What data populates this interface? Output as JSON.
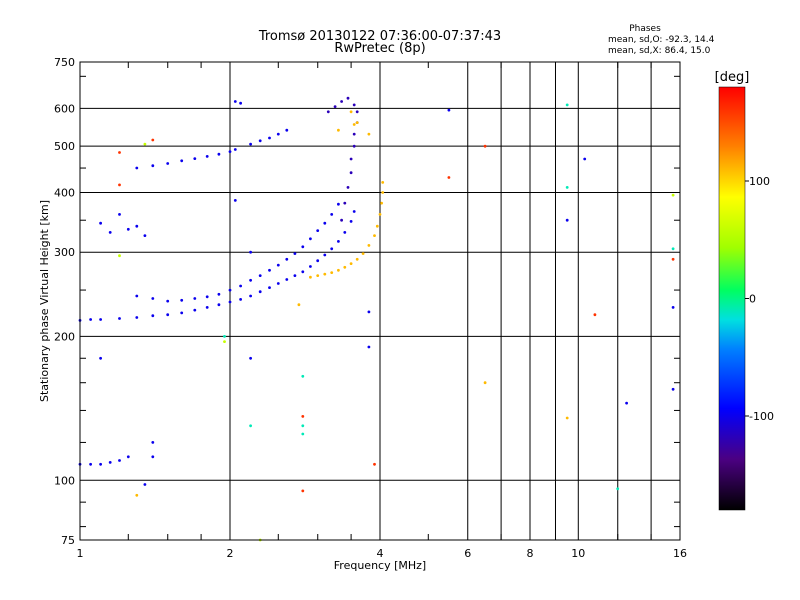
{
  "chart_data": {
    "type": "scatter",
    "title": "Tromsø 20130122 07:36:00-07:37:43",
    "subtitle": "RwPretec (8p)",
    "xlabel": "Frequency [MHz]",
    "ylabel": "Stationary phase Virtual Height [km]",
    "x_scale": "log",
    "y_scale": "log",
    "xlim": [
      1,
      16
    ],
    "ylim": [
      75,
      750
    ],
    "x_ticks": [
      1,
      2,
      4,
      6,
      8,
      10,
      16
    ],
    "y_ticks": [
      75,
      100,
      200,
      300,
      400,
      500,
      600,
      750
    ],
    "grid": true,
    "stats": {
      "heading": "Phases",
      "line_o": "mean, sd,O: -92.3, 14.4",
      "line_x": "mean, sd,X: 86.4, 15.0"
    },
    "colorbar": {
      "label": "[deg]",
      "range": [
        -180,
        180
      ],
      "ticks": [
        100,
        0,
        -100
      ]
    },
    "series": [
      {
        "phase_deg": -100,
        "points": [
          [
            1.0,
            216
          ],
          [
            1.05,
            217
          ],
          [
            1.1,
            217
          ],
          [
            1.2,
            218
          ],
          [
            1.3,
            219
          ],
          [
            1.4,
            221
          ],
          [
            1.5,
            222
          ],
          [
            1.6,
            224
          ],
          [
            1.7,
            227
          ],
          [
            1.8,
            230
          ],
          [
            1.9,
            233
          ],
          [
            2.0,
            236
          ],
          [
            2.1,
            239
          ],
          [
            2.2,
            243
          ],
          [
            2.3,
            248
          ],
          [
            2.4,
            253
          ],
          [
            2.5,
            258
          ],
          [
            2.6,
            263
          ],
          [
            2.7,
            268
          ],
          [
            2.8,
            273
          ],
          [
            2.9,
            280
          ],
          [
            3.0,
            288
          ],
          [
            3.1,
            296
          ],
          [
            3.2,
            305
          ],
          [
            3.3,
            316
          ],
          [
            3.4,
            330
          ],
          [
            3.5,
            348
          ],
          [
            3.55,
            365
          ]
        ]
      },
      {
        "phase_deg": -100,
        "points": [
          [
            1.3,
            243
          ],
          [
            1.4,
            240
          ],
          [
            1.5,
            237
          ],
          [
            1.6,
            238
          ],
          [
            1.7,
            240
          ],
          [
            1.8,
            242
          ],
          [
            1.9,
            245
          ],
          [
            2.0,
            250
          ],
          [
            2.1,
            255
          ],
          [
            2.2,
            262
          ],
          [
            2.3,
            268
          ],
          [
            2.4,
            275
          ],
          [
            2.5,
            282
          ],
          [
            2.6,
            290
          ],
          [
            2.7,
            298
          ],
          [
            2.8,
            308
          ],
          [
            2.9,
            320
          ],
          [
            3.0,
            333
          ],
          [
            3.1,
            345
          ],
          [
            3.2,
            360
          ],
          [
            3.3,
            378
          ]
        ]
      },
      {
        "phase_deg": -100,
        "points": [
          [
            1.3,
            450
          ],
          [
            1.4,
            455
          ],
          [
            1.5,
            460
          ],
          [
            1.6,
            466
          ],
          [
            1.7,
            471
          ],
          [
            1.8,
            476
          ],
          [
            1.9,
            481
          ],
          [
            2.0,
            487
          ],
          [
            2.05,
            492
          ],
          [
            2.2,
            505
          ],
          [
            2.3,
            513
          ],
          [
            2.4,
            520
          ],
          [
            2.5,
            530
          ],
          [
            2.6,
            540
          ]
        ]
      },
      {
        "phase_deg": -118,
        "points": [
          [
            3.35,
            350
          ],
          [
            3.4,
            380
          ],
          [
            3.45,
            410
          ],
          [
            3.5,
            440
          ],
          [
            3.5,
            470
          ],
          [
            3.55,
            500
          ],
          [
            3.55,
            530
          ],
          [
            3.6,
            560
          ],
          [
            3.6,
            590
          ],
          [
            3.55,
            610
          ],
          [
            3.45,
            630
          ],
          [
            3.35,
            620
          ],
          [
            3.25,
            605
          ],
          [
            3.15,
            590
          ]
        ]
      },
      {
        "phase_deg": 110,
        "points": [
          [
            2.9,
            266
          ],
          [
            3.0,
            268
          ],
          [
            3.1,
            270
          ],
          [
            3.2,
            272
          ],
          [
            3.3,
            275
          ],
          [
            3.4,
            279
          ],
          [
            3.5,
            284
          ],
          [
            3.6,
            290
          ],
          [
            3.7,
            298
          ],
          [
            3.8,
            310
          ],
          [
            3.9,
            325
          ],
          [
            3.95,
            340
          ],
          [
            4.0,
            360
          ],
          [
            4.03,
            380
          ],
          [
            4.05,
            400
          ],
          [
            4.05,
            420
          ]
        ]
      },
      {
        "phase_deg": -100,
        "points": [
          [
            1.0,
            108
          ],
          [
            1.05,
            108
          ],
          [
            1.1,
            108
          ],
          [
            1.15,
            109
          ],
          [
            1.2,
            110
          ],
          [
            1.25,
            112
          ]
        ]
      },
      {
        "phase_deg": -100,
        "points": [
          [
            1.1,
            345
          ],
          [
            1.15,
            330
          ],
          [
            1.2,
            360
          ],
          [
            1.25,
            335
          ],
          [
            1.3,
            340
          ],
          [
            1.35,
            325
          ],
          [
            1.4,
            120
          ],
          [
            1.4,
            112
          ],
          [
            1.35,
            98
          ],
          [
            1.1,
            180
          ],
          [
            2.2,
            300
          ],
          [
            2.2,
            180
          ],
          [
            2.05,
            385
          ],
          [
            3.8,
            225
          ],
          [
            3.8,
            190
          ],
          [
            5.5,
            595
          ],
          [
            9.5,
            350
          ],
          [
            10.3,
            470
          ],
          [
            12.5,
            145
          ],
          [
            15.5,
            230
          ],
          [
            15.5,
            155
          ],
          [
            2.05,
            620
          ],
          [
            2.1,
            615
          ]
        ]
      },
      {
        "phase_deg": 110,
        "points": [
          [
            1.3,
            93
          ],
          [
            2.75,
            233
          ],
          [
            3.3,
            540
          ],
          [
            3.5,
            590
          ],
          [
            3.55,
            555
          ],
          [
            3.6,
            560
          ],
          [
            3.8,
            530
          ],
          [
            6.5,
            160
          ],
          [
            9.5,
            135
          ]
        ]
      },
      {
        "phase_deg": -10,
        "points": [
          [
            2.8,
            165
          ],
          [
            2.8,
            130
          ],
          [
            2.8,
            125
          ],
          [
            9.5,
            610
          ],
          [
            9.5,
            410
          ],
          [
            12,
            96
          ],
          [
            15.5,
            305
          ],
          [
            1.95,
            200
          ],
          [
            2.2,
            130
          ]
        ]
      },
      {
        "phase_deg": 160,
        "points": [
          [
            1.2,
            485
          ],
          [
            1.2,
            415
          ],
          [
            1.4,
            515
          ],
          [
            2.8,
            136
          ],
          [
            3.9,
            108
          ],
          [
            5.5,
            430
          ],
          [
            6.5,
            500
          ],
          [
            15.5,
            290
          ],
          [
            2.8,
            95
          ],
          [
            10.8,
            222
          ]
        ]
      },
      {
        "phase_deg": 60,
        "points": [
          [
            1.35,
            505
          ],
          [
            1.2,
            295
          ],
          [
            1.95,
            195
          ],
          [
            2.3,
            75
          ],
          [
            15.5,
            395
          ]
        ]
      }
    ]
  }
}
